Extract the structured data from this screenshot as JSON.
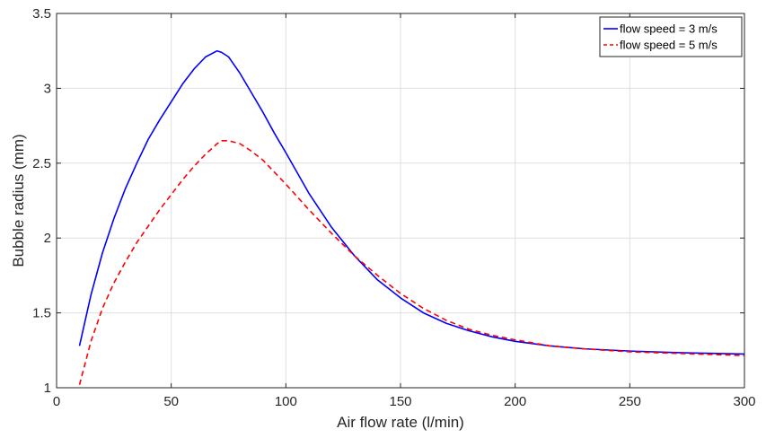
{
  "chart_data": {
    "type": "line",
    "xlabel": "Air flow rate (l/min)",
    "ylabel": "Bubble radius (mm)",
    "xlim": [
      0,
      300
    ],
    "ylim": [
      1,
      3.5
    ],
    "xticks": [
      0,
      50,
      100,
      150,
      200,
      250,
      300
    ],
    "yticks": [
      1,
      1.5,
      2,
      2.5,
      3,
      3.5
    ],
    "xtick_labels": [
      "0",
      "50",
      "100",
      "150",
      "200",
      "250",
      "300"
    ],
    "ytick_labels": [
      "1",
      "1.5",
      "2",
      "2.5",
      "3",
      "3.5"
    ],
    "grid": true,
    "legend_position": "top-right",
    "series": [
      {
        "name": "flow speed = 3 m/s",
        "color": "#0000ff",
        "dash": "solid",
        "x": [
          10,
          15,
          20,
          25,
          30,
          35,
          40,
          45,
          50,
          55,
          60,
          65,
          70,
          72,
          75,
          80,
          85,
          90,
          95,
          100,
          110,
          120,
          130,
          140,
          150,
          160,
          170,
          180,
          190,
          200,
          215,
          230,
          250,
          270,
          290,
          300
        ],
        "y": [
          1.28,
          1.62,
          1.9,
          2.13,
          2.33,
          2.5,
          2.66,
          2.79,
          2.91,
          3.03,
          3.13,
          3.21,
          3.25,
          3.24,
          3.21,
          3.1,
          2.97,
          2.84,
          2.7,
          2.57,
          2.3,
          2.07,
          1.88,
          1.72,
          1.6,
          1.5,
          1.43,
          1.38,
          1.34,
          1.31,
          1.28,
          1.26,
          1.245,
          1.235,
          1.228,
          1.225
        ]
      },
      {
        "name": "flow speed = 5 m/s",
        "color": "#ff0000",
        "dash": "dashed",
        "x": [
          10,
          15,
          20,
          25,
          30,
          35,
          40,
          45,
          50,
          55,
          60,
          65,
          70,
          72,
          75,
          80,
          85,
          90,
          95,
          100,
          110,
          120,
          130,
          140,
          150,
          160,
          170,
          180,
          190,
          200,
          215,
          230,
          250,
          270,
          290,
          300
        ],
        "y": [
          1.02,
          1.31,
          1.53,
          1.7,
          1.84,
          1.97,
          2.08,
          2.19,
          2.29,
          2.39,
          2.48,
          2.56,
          2.63,
          2.65,
          2.65,
          2.63,
          2.58,
          2.52,
          2.44,
          2.36,
          2.19,
          2.03,
          1.88,
          1.75,
          1.63,
          1.53,
          1.45,
          1.39,
          1.35,
          1.32,
          1.28,
          1.26,
          1.24,
          1.23,
          1.22,
          1.215
        ]
      }
    ]
  }
}
